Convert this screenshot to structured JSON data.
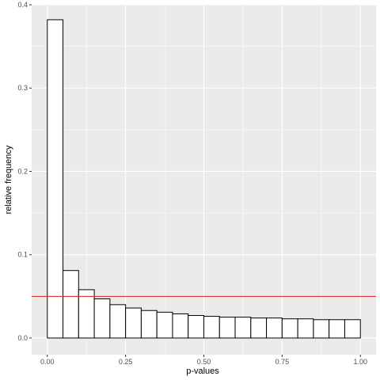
{
  "chart_data": {
    "type": "bar",
    "xlabel": "p-values",
    "ylabel": "relative frequency",
    "xlim": [
      -0.05,
      1.05
    ],
    "ylim": [
      -0.02,
      0.4
    ],
    "bin_width": 0.05,
    "bins_start": [
      0.0,
      0.05,
      0.1,
      0.15,
      0.2,
      0.25,
      0.3,
      0.35,
      0.4,
      0.45,
      0.5,
      0.55,
      0.6,
      0.65,
      0.7,
      0.75,
      0.8,
      0.85,
      0.9,
      0.95
    ],
    "values": [
      0.382,
      0.081,
      0.058,
      0.047,
      0.04,
      0.036,
      0.033,
      0.031,
      0.029,
      0.027,
      0.026,
      0.025,
      0.025,
      0.024,
      0.024,
      0.023,
      0.023,
      0.022,
      0.022,
      0.022
    ],
    "reference_line": {
      "y": 0.05,
      "color": "#e41a1c"
    },
    "x_ticks": [
      0,
      0.25,
      0.5,
      0.75,
      1.0
    ],
    "x_tick_labels": [
      "0.00",
      "0.25",
      "0.50",
      "0.75",
      "1.00"
    ],
    "y_ticks": [
      0,
      0.1,
      0.2,
      0.3,
      0.4
    ],
    "y_tick_labels": [
      "0.0",
      "0.1",
      "0.2",
      "0.3",
      "0.4"
    ],
    "grid": true,
    "colors": {
      "panel": "#ebebeb",
      "grid_major": "#ffffff",
      "bar_fill": "#ffffff",
      "bar_stroke": "#000000"
    }
  }
}
